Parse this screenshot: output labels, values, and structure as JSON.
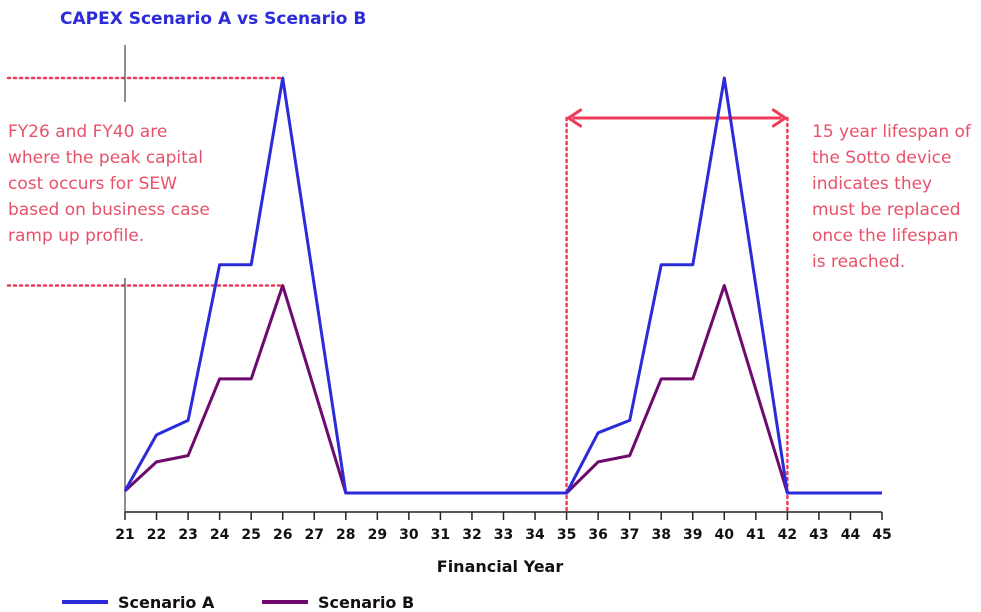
{
  "colors": {
    "scenario_a": "#2b2bd9",
    "scenario_b": "#6e0a6e",
    "annotation": "#ef3b5a",
    "title": "#2b2bd9",
    "axis": "#222222"
  },
  "chart_data": {
    "type": "line",
    "title": "CAPEX Scenario A vs Scenario B",
    "xlabel": "Financial Year",
    "ylabel": "",
    "x": [
      21,
      22,
      23,
      24,
      25,
      26,
      27,
      28,
      29,
      30,
      31,
      32,
      33,
      34,
      35,
      36,
      37,
      38,
      39,
      40,
      41,
      42,
      43,
      44,
      45
    ],
    "series": [
      {
        "name": "Scenario A",
        "color": "#2b2bd9",
        "values": [
          0.5,
          14,
          17.5,
          55,
          55,
          100,
          50,
          0,
          0,
          0,
          0,
          0,
          0,
          0,
          0,
          14.5,
          17.5,
          55,
          55,
          100,
          50,
          0,
          0,
          0,
          0
        ]
      },
      {
        "name": "Scenario B",
        "color": "#6e0a6e",
        "values": [
          0.5,
          7.5,
          9,
          27.5,
          27.5,
          50,
          25,
          0,
          0,
          0,
          0,
          0,
          0,
          0,
          0,
          7.5,
          9,
          27.5,
          27.5,
          50,
          25,
          0,
          0,
          0,
          0
        ]
      }
    ],
    "xlim": [
      21,
      45
    ],
    "ylim": [
      0,
      100
    ],
    "grid": false,
    "legend_position": "bottom-left",
    "annotations": {
      "left_text": [
        "FY26 and FY40 are",
        "where the peak capital",
        "cost occurs for SEW",
        "based on business case",
        "ramp up profile."
      ],
      "right_text": [
        "15 year lifespan of",
        "the Sotto device",
        "indicates they",
        "must be replaced",
        "once the lifespan",
        "is reached."
      ],
      "span_arrow": {
        "from": 35,
        "to": 42
      },
      "peak_guides": {
        "year": 26,
        "levels": [
          100,
          50
        ]
      }
    }
  }
}
